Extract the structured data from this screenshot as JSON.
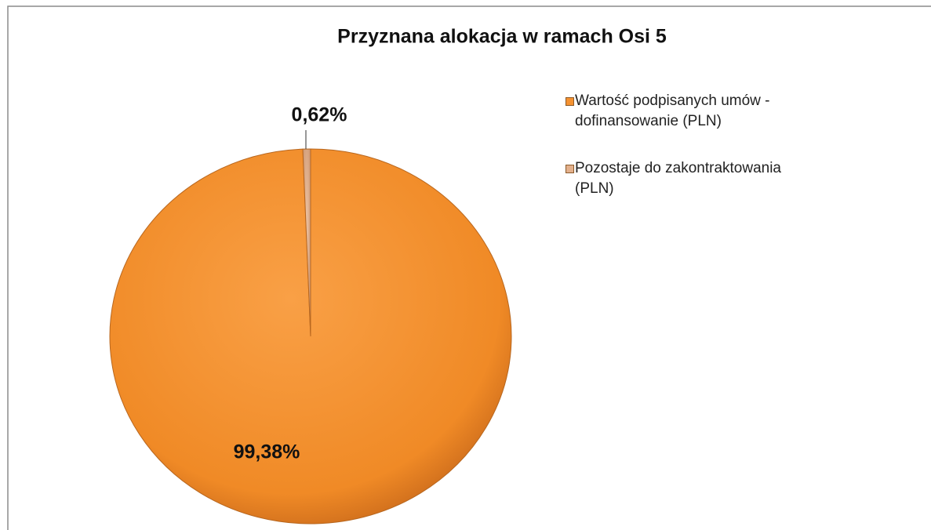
{
  "chart_data": {
    "type": "pie",
    "title": "Przyznana alokacja w ramach Osi  5",
    "categories": [
      "Wartość podpisanych umów - dofinansowanie (PLN)",
      "Pozostaje do zakontraktowania (PLN)"
    ],
    "values": [
      99.38,
      0.62
    ],
    "value_labels": [
      "99,38%",
      "0,62%"
    ],
    "colors": [
      "#f59231",
      "#e3b08c"
    ],
    "legend": "right"
  }
}
